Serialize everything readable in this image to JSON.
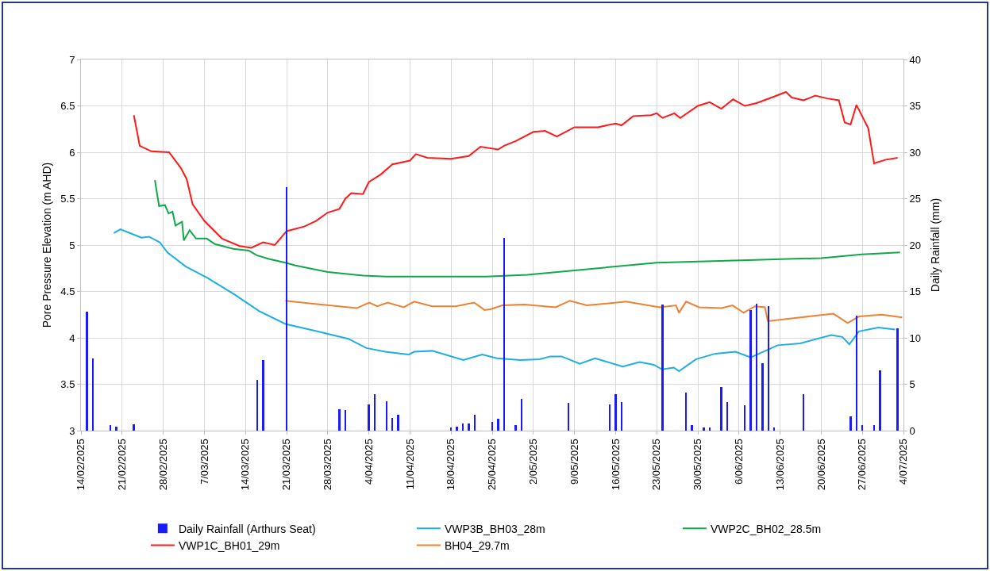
{
  "chart_data": {
    "type": "line",
    "ylabel": "Pore Pressure Elevation (m AHD)",
    "y2label": "Daily Rainfall (mm)",
    "xlim": [
      "2025-02-14",
      "2025-07-04"
    ],
    "xticks": [
      {
        "value": "2025-02-14",
        "label": "14/02/2025"
      },
      {
        "value": "2025-02-21",
        "label": "21/02/2025"
      },
      {
        "value": "2025-02-28",
        "label": "28/02/2025"
      },
      {
        "value": "2025-03-07",
        "label": "7/03/2025"
      },
      {
        "value": "2025-03-14",
        "label": "14/03/2025"
      },
      {
        "value": "2025-03-21",
        "label": "21/03/2025"
      },
      {
        "value": "2025-03-28",
        "label": "28/03/2025"
      },
      {
        "value": "2025-04-04",
        "label": "4/04/2025"
      },
      {
        "value": "2025-04-11",
        "label": "11/04/2025"
      },
      {
        "value": "2025-04-18",
        "label": "18/04/2025"
      },
      {
        "value": "2025-04-25",
        "label": "25/04/2025"
      },
      {
        "value": "2025-05-02",
        "label": "2/05/2025"
      },
      {
        "value": "2025-05-09",
        "label": "9/05/2025"
      },
      {
        "value": "2025-05-16",
        "label": "16/05/2025"
      },
      {
        "value": "2025-05-23",
        "label": "23/05/2025"
      },
      {
        "value": "2025-05-30",
        "label": "30/05/2025"
      },
      {
        "value": "2025-06-06",
        "label": "6/06/2025"
      },
      {
        "value": "2025-06-13",
        "label": "13/06/2025"
      },
      {
        "value": "2025-06-20",
        "label": "20/06/2025"
      },
      {
        "value": "2025-06-27",
        "label": "27/06/2025"
      },
      {
        "value": "2025-07-04",
        "label": "4/07/2025"
      }
    ],
    "ylim": [
      3,
      7
    ],
    "yticks": [
      3,
      3.5,
      4,
      4.5,
      5,
      5.5,
      6,
      6.5,
      7
    ],
    "y2lim": [
      0,
      40
    ],
    "y2ticks": [
      0,
      5,
      10,
      15,
      20,
      25,
      30,
      35,
      40
    ],
    "grid": true,
    "legend": "bottom",
    "line_style": "solid",
    "series": [
      {
        "name": "Daily Rainfall (Arthurs Seat)",
        "type": "bar",
        "axis": "y2",
        "color": "#1a1aff",
        "x": [
          "2025-02-15",
          "2025-02-16",
          "2025-02-19",
          "2025-02-20",
          "2025-02-23",
          "2025-03-16",
          "2025-03-17",
          "2025-03-21",
          "2025-03-30",
          "2025-03-31",
          "2025-04-04",
          "2025-04-05",
          "2025-04-07",
          "2025-04-08",
          "2025-04-09",
          "2025-04-18",
          "2025-04-19",
          "2025-04-20",
          "2025-04-21",
          "2025-04-22",
          "2025-04-25",
          "2025-04-26",
          "2025-04-27",
          "2025-04-29",
          "2025-04-30",
          "2025-05-08",
          "2025-05-15",
          "2025-05-16",
          "2025-05-17",
          "2025-05-24",
          "2025-05-28",
          "2025-05-29",
          "2025-05-31",
          "2025-06-01",
          "2025-06-03",
          "2025-06-04",
          "2025-06-07",
          "2025-06-08",
          "2025-06-09",
          "2025-06-10",
          "2025-06-11",
          "2025-06-12",
          "2025-06-17",
          "2025-06-25",
          "2025-06-26",
          "2025-06-27",
          "2025-06-29",
          "2025-06-30",
          "2025-07-03"
        ],
        "values": [
          12.8,
          7.8,
          0.6,
          0.4,
          0.7,
          5.5,
          7.6,
          26.2,
          2.3,
          2.2,
          2.8,
          3.9,
          3.2,
          1.4,
          1.7,
          0.3,
          0.4,
          0.8,
          0.8,
          1.7,
          0.9,
          1.3,
          20.8,
          0.6,
          3.4,
          3.0,
          2.8,
          3.9,
          3.1,
          13.6,
          4.1,
          0.6,
          0.3,
          0.3,
          4.7,
          3.1,
          2.7,
          13.0,
          13.7,
          7.3,
          13.4,
          0.3,
          3.9,
          1.5,
          12.4,
          0.6,
          0.6,
          6.5,
          11.0
        ]
      },
      {
        "name": "VWP3B_BH03_28m",
        "color": "#1eaee6",
        "x": [
          "2025-02-19T14:00",
          "2025-02-20T17:00",
          "2025-02-22T07:00",
          "2025-02-24T07:00",
          "2025-02-25T14:00",
          "2025-02-27T10:00",
          "2025-02-28T17:00",
          "2025-03-03T19:00",
          "2025-03-07T10:00",
          "2025-03-12T07:00",
          "2025-03-16T07:00",
          "2025-03-20T19:00",
          "2025-03-26T05:00",
          "2025-03-31T12:00",
          "2025-04-03T14:00",
          "2025-04-06T19:00",
          "2025-04-10T19:00",
          "2025-04-11T17:00",
          "2025-04-14T19:00",
          "2025-04-20T02:00",
          "2025-04-23T07:00",
          "2025-04-25T19:00",
          "2025-04-29T19:00",
          "2025-05-03T02:00",
          "2025-05-04T22:00",
          "2025-05-06T19:00",
          "2025-05-09T22:00",
          "2025-05-12T12:00",
          "2025-05-17T05:00",
          "2025-05-20T02:00",
          "2025-05-22T12:00",
          "2025-05-23T22:00",
          "2025-05-25T22:00",
          "2025-05-26T19:00",
          "2025-05-29T17:00",
          "2025-06-02",
          "2025-06-05T10:00",
          "2025-06-08",
          "2025-06-12T14:00",
          "2025-06-16T10:00",
          "2025-06-21T17:00",
          "2025-06-23T14:00",
          "2025-06-24T19:00",
          "2025-06-26T10:00",
          "2025-06-29T17:00",
          "2025-07-02T14:00"
        ],
        "values": [
          5.13,
          5.17,
          5.13,
          5.08,
          5.09,
          5.03,
          4.92,
          4.77,
          4.65,
          4.46,
          4.29,
          4.15,
          4.07,
          3.99,
          3.89,
          3.85,
          3.82,
          3.85,
          3.86,
          3.76,
          3.82,
          3.78,
          3.76,
          3.77,
          3.8,
          3.8,
          3.72,
          3.78,
          3.69,
          3.74,
          3.71,
          3.66,
          3.68,
          3.64,
          3.77,
          3.83,
          3.85,
          3.79,
          3.92,
          3.94,
          4.03,
          4.01,
          3.93,
          4.07,
          4.11,
          4.09
        ]
      },
      {
        "name": "VWP2C_BH02_28.5m",
        "color": "#12a84a",
        "x": [
          "2025-02-26T14:00",
          "2025-02-27T07:00",
          "2025-02-28T07:00",
          "2025-02-28T22:00",
          "2025-03-01T14:00",
          "2025-03-02T02:00",
          "2025-03-03T05:00",
          "2025-03-03T12:00",
          "2025-03-04T12:00",
          "2025-03-05T14:00",
          "2025-03-07T10:00",
          "2025-03-08T19:00",
          "2025-03-11T22:00",
          "2025-03-14T14:00",
          "2025-03-15T22:00",
          "2025-03-18",
          "2025-03-20T19:00",
          "2025-03-22T12:00",
          "2025-03-28",
          "2025-04-03",
          "2025-04-07",
          "2025-04-13",
          "2025-04-24",
          "2025-05-01",
          "2025-05-23",
          "2025-06-08T17:00",
          "2025-06-20",
          "2025-06-26T22:00",
          "2025-07-03T10:00"
        ],
        "values": [
          5.7,
          5.42,
          5.43,
          5.34,
          5.36,
          5.21,
          5.25,
          5.05,
          5.16,
          5.07,
          5.07,
          5.01,
          4.96,
          4.94,
          4.89,
          4.85,
          4.81,
          4.78,
          4.71,
          4.67,
          4.66,
          4.66,
          4.66,
          4.68,
          4.81,
          4.84,
          4.86,
          4.9,
          4.92
        ]
      },
      {
        "name": "VWP1C_BH01_29m",
        "color": "#ff1a1a",
        "x": [
          "2025-02-23",
          "2025-02-24",
          "2025-02-26",
          "2025-03-01",
          "2025-03-03",
          "2025-03-04",
          "2025-03-05",
          "2025-03-07",
          "2025-03-10",
          "2025-03-13",
          "2025-03-15",
          "2025-03-17",
          "2025-03-19",
          "2025-03-21",
          "2025-03-24",
          "2025-03-26",
          "2025-03-28",
          "2025-03-30",
          "2025-03-31",
          "2025-04-01",
          "2025-04-03",
          "2025-04-04",
          "2025-04-06",
          "2025-04-08",
          "2025-04-11",
          "2025-04-12",
          "2025-04-14",
          "2025-04-18",
          "2025-04-21",
          "2025-04-23",
          "2025-04-26",
          "2025-04-27",
          "2025-04-29",
          "2025-05-02",
          "2025-05-04",
          "2025-05-06",
          "2025-05-09",
          "2025-05-13",
          "2025-05-16",
          "2025-05-17",
          "2025-05-19",
          "2025-05-22",
          "2025-05-23",
          "2025-05-24",
          "2025-05-26",
          "2025-05-27",
          "2025-05-30",
          "2025-06-01",
          "2025-06-03",
          "2025-06-05",
          "2025-06-07",
          "2025-06-09",
          "2025-06-12",
          "2025-06-14",
          "2025-06-15",
          "2025-06-17",
          "2025-06-19",
          "2025-06-21",
          "2025-06-23",
          "2025-06-24",
          "2025-06-25",
          "2025-06-26",
          "2025-06-28",
          "2025-06-29",
          "2025-07-01",
          "2025-07-03"
        ],
        "values": [
          6.4,
          6.07,
          6.01,
          6.0,
          5.83,
          5.71,
          5.44,
          5.26,
          5.07,
          4.99,
          4.97,
          5.03,
          5.0,
          5.15,
          5.2,
          5.26,
          5.35,
          5.39,
          5.5,
          5.56,
          5.55,
          5.68,
          5.76,
          5.87,
          5.91,
          5.98,
          5.94,
          5.93,
          5.96,
          6.06,
          6.03,
          6.07,
          6.12,
          6.22,
          6.23,
          6.17,
          6.27,
          6.27,
          6.31,
          6.29,
          6.39,
          6.4,
          6.42,
          6.37,
          6.42,
          6.37,
          6.5,
          6.54,
          6.47,
          6.57,
          6.5,
          6.53,
          6.6,
          6.65,
          6.59,
          6.56,
          6.61,
          6.58,
          6.56,
          6.32,
          6.3,
          6.51,
          6.26,
          5.88,
          5.92,
          5.94
        ]
      },
      {
        "name": "BH04_29.7m",
        "color": "#ee8232",
        "x": [
          "2025-03-20T19:00",
          "2025-03-25T05:00",
          "2025-04-01T22:00",
          "2025-04-04T02:00",
          "2025-04-05T10:00",
          "2025-04-07T05:00",
          "2025-04-09T22:00",
          "2025-04-11T17:00",
          "2025-04-14T19:00",
          "2025-04-18T19:00",
          "2025-04-21T22:00",
          "2025-04-23T17:00",
          "2025-04-24T19:00",
          "2025-04-26T17:00",
          "2025-04-30T12:00",
          "2025-05-05T19:00",
          "2025-05-08T05:00",
          "2025-05-11T02:00",
          "2025-05-17T19:00",
          "2025-05-23T12:00",
          "2025-05-26T07:00",
          "2025-05-26T19:00",
          "2025-05-28",
          "2025-05-30T05:00",
          "2025-06-03",
          "2025-06-04T22:00",
          "2025-06-06T19:00",
          "2025-06-08T17:00",
          "2025-06-10T10:00",
          "2025-06-10T22:00",
          "2025-06-16T10:00",
          "2025-06-22T02:00",
          "2025-06-24T12:00",
          "2025-06-26T10:00",
          "2025-06-30T07:00",
          "2025-07-03T19:00"
        ],
        "values": [
          4.4,
          4.37,
          4.32,
          4.38,
          4.34,
          4.38,
          4.33,
          4.39,
          4.34,
          4.34,
          4.38,
          4.3,
          4.31,
          4.35,
          4.36,
          4.33,
          4.4,
          4.35,
          4.39,
          4.33,
          4.35,
          4.27,
          4.39,
          4.33,
          4.32,
          4.35,
          4.27,
          4.34,
          4.33,
          4.18,
          4.22,
          4.26,
          4.16,
          4.23,
          4.25,
          4.22
        ]
      }
    ]
  }
}
